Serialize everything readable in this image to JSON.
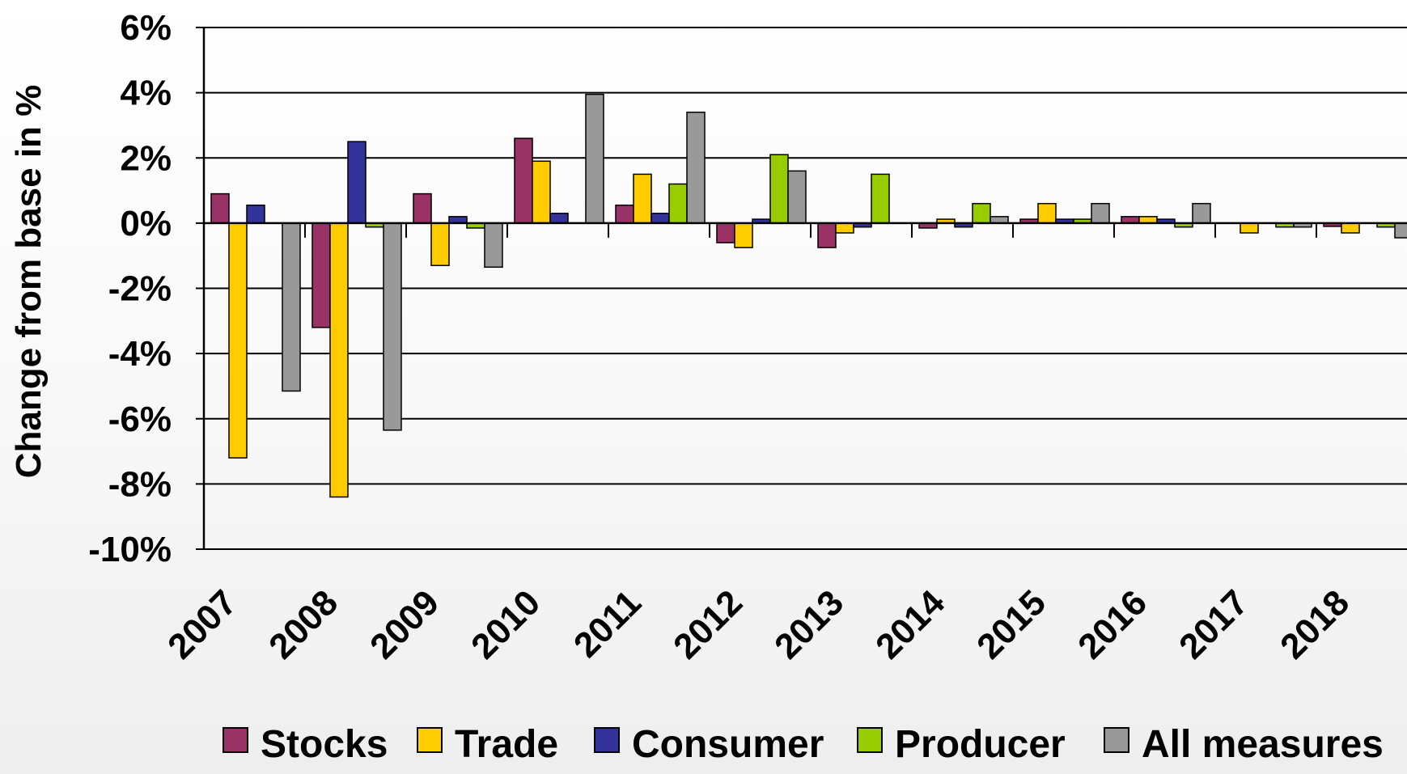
{
  "chart_data": {
    "type": "bar",
    "title": "",
    "xlabel": "",
    "ylabel": "Change from base in %",
    "ylim": [
      -10,
      6
    ],
    "yticks": [
      6,
      4,
      2,
      0,
      -2,
      -4,
      -6,
      -8,
      -10
    ],
    "ytick_labels": [
      "6%",
      "4%",
      "2%",
      "0%",
      "-2%",
      "-4%",
      "-6%",
      "-8%",
      "-10%"
    ],
    "categories": [
      "2007",
      "2008",
      "2009",
      "2010",
      "2011",
      "2012",
      "2013",
      "2014",
      "2015",
      "2016",
      "2017",
      "2018"
    ],
    "grid": true,
    "legend_position": "bottom",
    "series": [
      {
        "name": "Stocks",
        "color": "#993366",
        "values": [
          0.9,
          -3.2,
          0.9,
          2.6,
          0.55,
          -0.6,
          -0.75,
          -0.15,
          0.12,
          0.2,
          0.0,
          -0.1
        ]
      },
      {
        "name": "Trade",
        "color": "#FFCC00",
        "values": [
          -7.2,
          -8.4,
          -1.3,
          1.9,
          1.5,
          -0.75,
          -0.3,
          0.12,
          0.6,
          0.2,
          -0.3,
          -0.3
        ]
      },
      {
        "name": "Consumer",
        "color": "#333399",
        "values": [
          0.55,
          2.5,
          0.2,
          0.3,
          0.3,
          0.12,
          -0.12,
          -0.12,
          0.12,
          0.12,
          0.0,
          0.0
        ]
      },
      {
        "name": "Producer",
        "color": "#99CC00",
        "values": [
          0.0,
          -0.12,
          -0.15,
          0.0,
          1.2,
          2.1,
          1.5,
          0.6,
          0.12,
          -0.12,
          -0.12,
          -0.12
        ]
      },
      {
        "name": "All measures",
        "color": "#999999",
        "values": [
          -5.15,
          -6.35,
          -1.35,
          3.95,
          3.4,
          1.6,
          0.0,
          0.2,
          0.6,
          0.6,
          -0.12,
          -0.45
        ]
      }
    ]
  }
}
